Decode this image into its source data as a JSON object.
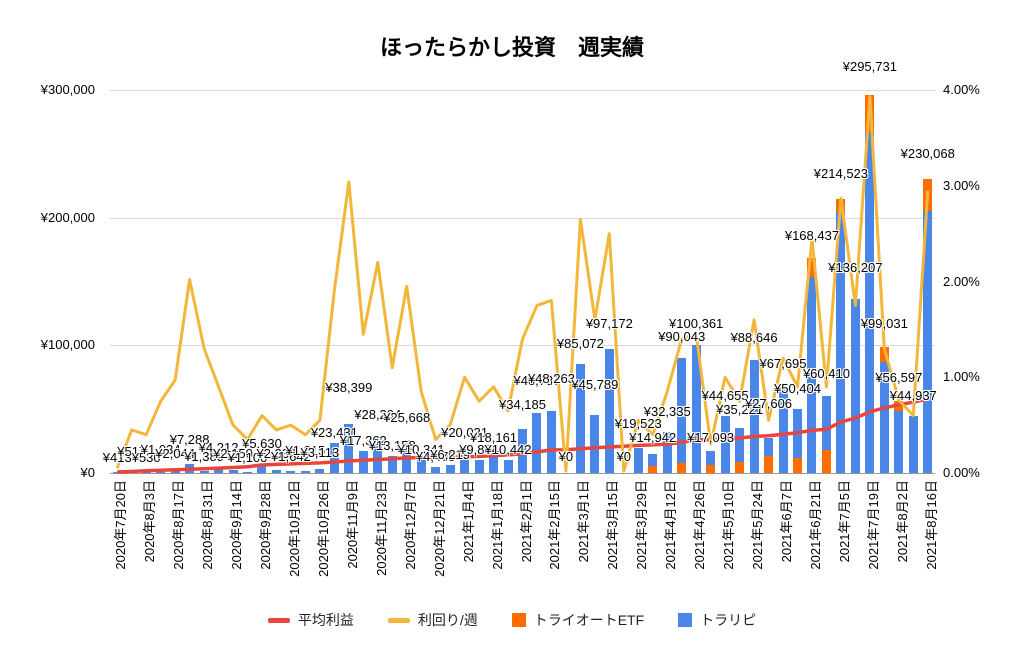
{
  "title": "ほったらかし投資　週実績",
  "legend": [
    {
      "label": "平均利益",
      "type": "line",
      "color": "#e8453c"
    },
    {
      "label": "利回り/週",
      "type": "line",
      "color": "#f2b73a"
    },
    {
      "label": "トライオートETF",
      "type": "square",
      "color": "#ff6d01"
    },
    {
      "label": "トラリピ",
      "type": "square",
      "color": "#4a86e8"
    }
  ],
  "chart_data": {
    "type": "bar",
    "subtype": "stacked-combo",
    "colors": {
      "traripi_bar": "#4a86e8",
      "etf_bar": "#ff6d01",
      "yield_line": "#f2b73a",
      "avg_line": "#e8453c",
      "grid": "#d9d9d9"
    },
    "left_axis": {
      "title": "",
      "min": 0,
      "max": 300000,
      "ticks": [
        "¥0",
        "¥100,000",
        "¥200,000",
        "¥300,000"
      ]
    },
    "right_axis": {
      "title": "",
      "min": 0,
      "max": 4,
      "ticks": [
        "0.00%",
        "1.00%",
        "2.00%",
        "3.00%",
        "4.00%"
      ]
    },
    "x_axis_labels": [
      "2020年7月20日",
      "2020年8月3日",
      "2020年8月17日",
      "2020年8月31日",
      "2020年9月14日",
      "2020年9月28日",
      "2020年10月12日",
      "2020年10月26日",
      "2020年11月9日",
      "2020年11月23日",
      "2020年12月7日",
      "2020年12月21日",
      "2021年1月4日",
      "2021年1月18日",
      "2021年2月1日",
      "2021年2月15日",
      "2021年3月1日",
      "2021年3月15日",
      "2021年3月29日",
      "2021年4月12日",
      "2021年4月26日",
      "2021年5月10日",
      "2021年5月24日",
      "2021年6月7日",
      "2021年6月21日",
      "2021年7月5日",
      "2021年7月19日",
      "2021年8月2日",
      "2021年8月16日"
    ],
    "series_names": {
      "bar_bottom": "トラリピ",
      "bar_overlay": "トライオートETF",
      "line_right_axis": "利回り/週",
      "line_left_axis": "平均利益"
    },
    "weeks": [
      {
        "label": "¥413",
        "total": 413,
        "etf": 0,
        "etf_pos": "top",
        "yield": 0.05,
        "avg": 800,
        "lift": 6
      },
      {
        "label": "¥517",
        "total": 517,
        "etf": 0,
        "etf_pos": "top",
        "yield": 0.45,
        "avg": 1200,
        "lift": 12
      },
      {
        "label": "¥530",
        "total": 530,
        "etf": 0,
        "etf_pos": "top",
        "yield": 0.4,
        "avg": 1700,
        "lift": 6
      },
      {
        "label": "¥1,034",
        "total": 1034,
        "etf": 0,
        "etf_pos": "top",
        "yield": 0.75,
        "avg": 2200,
        "lift": 14
      },
      {
        "label": "¥2,044",
        "total": 2044,
        "etf": 0,
        "etf_pos": "top",
        "yield": 0.97,
        "avg": 2600,
        "lift": 8
      },
      {
        "label": "¥7,288",
        "total": 7288,
        "etf": 0,
        "etf_pos": "top",
        "yield": 2.02,
        "avg": 2900,
        "lift": 16
      },
      {
        "label": "¥1,389",
        "total": 1389,
        "etf": 0,
        "etf_pos": "top",
        "yield": 1.3,
        "avg": 3300,
        "lift": 6
      },
      {
        "label": "¥4,212",
        "total": 4212,
        "etf": 0,
        "etf_pos": "top",
        "yield": 0.9,
        "avg": 3800,
        "lift": 12
      },
      {
        "label": "¥2,150",
        "total": 2150,
        "etf": 0,
        "etf_pos": "top",
        "yield": 0.5,
        "avg": 4300,
        "lift": 8
      },
      {
        "label": "¥1,100",
        "total": 1100,
        "etf": 0,
        "etf_pos": "top",
        "yield": 0.35,
        "avg": 4900,
        "lift": 6
      },
      {
        "label": "¥5,630",
        "total": 5630,
        "etf": 0,
        "etf_pos": "top",
        "yield": 0.6,
        "avg": 6300,
        "lift": 14
      },
      {
        "label": "¥2,333",
        "total": 2333,
        "etf": 0,
        "etf_pos": "top",
        "yield": 0.45,
        "avg": 6700,
        "lift": 8
      },
      {
        "label": "¥1,642",
        "total": 1642,
        "etf": 0,
        "etf_pos": "top",
        "yield": 0.5,
        "avg": 7100,
        "lift": 6
      },
      {
        "label": "¥1,215",
        "total": 1215,
        "etf": 0,
        "etf_pos": "top",
        "yield": 0.4,
        "avg": 7500,
        "lift": 12
      },
      {
        "label": "¥3,113",
        "total": 3113,
        "etf": 0,
        "etf_pos": "top",
        "yield": 0.55,
        "avg": 7900,
        "lift": 8
      },
      {
        "label": "¥23,431",
        "total": 23431,
        "etf": 0,
        "etf_pos": "top",
        "yield": 1.9,
        "avg": 8600,
        "lift": 2
      },
      {
        "label": "¥38,399",
        "total": 38399,
        "etf": 0,
        "etf_pos": "top",
        "yield": 3.04,
        "avg": 9400,
        "lift": 28
      },
      {
        "label": "¥17,362",
        "total": 17362,
        "etf": 0,
        "etf_pos": "top",
        "yield": 1.45,
        "avg": 10000,
        "lift": 2
      },
      {
        "label": "¥28,204",
        "total": 28204,
        "etf": 0,
        "etf_pos": "top",
        "yield": 2.2,
        "avg": 10600,
        "lift": 14
      },
      {
        "label": "¥13,158",
        "total": 13158,
        "etf": 0,
        "etf_pos": "top",
        "yield": 1.1,
        "avg": 11200,
        "lift": 2
      },
      {
        "label": "¥25,668",
        "total": 25668,
        "etf": 0,
        "etf_pos": "top",
        "yield": 1.95,
        "avg": 11800,
        "lift": 14
      },
      {
        "label": "¥10,341",
        "total": 10341,
        "etf": 0,
        "etf_pos": "top",
        "yield": 0.85,
        "avg": 12000,
        "lift": 2
      },
      {
        "label": "¥4,475",
        "total": 4475,
        "etf": 0,
        "etf_pos": "top",
        "yield": 0.35,
        "avg": 12200,
        "lift": 2
      },
      {
        "label": "¥6,219",
        "total": 6219,
        "etf": 0,
        "etf_pos": "top",
        "yield": 0.5,
        "avg": 12400,
        "lift": 2
      },
      {
        "label": "¥20,031",
        "total": 20031,
        "etf": 0,
        "etf_pos": "top",
        "yield": 1.0,
        "avg": 12700,
        "lift": 6
      },
      {
        "label": "¥9,804",
        "total": 9804,
        "etf": 0,
        "etf_pos": "top",
        "yield": 0.75,
        "avg": 13000,
        "lift": 2
      },
      {
        "label": "¥18,161",
        "total": 18161,
        "etf": 0,
        "etf_pos": "top",
        "yield": 0.9,
        "avg": 13600,
        "lift": 4
      },
      {
        "label": "¥10,442",
        "total": 10442,
        "etf": 0,
        "etf_pos": "top",
        "yield": 0.65,
        "avg": 14200,
        "lift": 2
      },
      {
        "label": "¥34,185",
        "total": 34185,
        "etf": 0,
        "etf_pos": "top",
        "yield": 1.4,
        "avg": 15000,
        "lift": 16
      },
      {
        "label": "¥46,737",
        "total": 46737,
        "etf": 0,
        "etf_pos": "top",
        "yield": 1.75,
        "avg": 16500,
        "lift": 24
      },
      {
        "label": "¥48,263",
        "total": 48263,
        "etf": 0,
        "etf_pos": "top",
        "yield": 1.8,
        "avg": 18000,
        "lift": 24
      },
      {
        "label": "¥0",
        "total": 0,
        "etf": 0,
        "etf_pos": "top",
        "yield": 0.02,
        "avg": 18200,
        "lift": 8
      },
      {
        "label": "¥85,072",
        "total": 85072,
        "etf": 0,
        "etf_pos": "top",
        "yield": 2.65,
        "avg": 19000,
        "lift": 12
      },
      {
        "label": "¥45,789",
        "total": 45789,
        "etf": 0,
        "etf_pos": "top",
        "yield": 1.6,
        "avg": 19800,
        "lift": 22
      },
      {
        "label": "¥97,172",
        "total": 97172,
        "etf": 0,
        "etf_pos": "top",
        "yield": 2.5,
        "avg": 20400,
        "lift": 17
      },
      {
        "label": "¥0",
        "total": 0,
        "etf": 0,
        "etf_pos": "top",
        "yield": 0.02,
        "avg": 21000,
        "lift": 8
      },
      {
        "label": "¥19,523",
        "total": 19523,
        "etf": 0,
        "etf_pos": "top",
        "yield": 0.55,
        "avg": 21600,
        "lift": 16
      },
      {
        "label": "¥14,942",
        "total": 14942,
        "etf": 5500,
        "etf_pos": "bottom",
        "yield": 0.4,
        "avg": 22000,
        "lift": 8
      },
      {
        "label": "¥32,335",
        "total": 32335,
        "etf": 0,
        "etf_pos": "top",
        "yield": 0.85,
        "avg": 22600,
        "lift": 12
      },
      {
        "label": "¥90,043",
        "total": 90043,
        "etf": 8000,
        "etf_pos": "bottom",
        "yield": 1.4,
        "avg": 24000,
        "lift": 13
      },
      {
        "label": "¥100,361",
        "total": 100361,
        "etf": 0,
        "etf_pos": "top",
        "yield": 1.45,
        "avg": 26000,
        "lift": 13
      },
      {
        "label": "¥17,093",
        "total": 17093,
        "etf": 6500,
        "etf_pos": "bottom",
        "yield": 0.3,
        "avg": 26200,
        "lift": 5
      },
      {
        "label": "¥44,655",
        "total": 44655,
        "etf": 0,
        "etf_pos": "top",
        "yield": 1.0,
        "avg": 26800,
        "lift": 12
      },
      {
        "label": "¥35,221",
        "total": 35221,
        "etf": 9000,
        "etf_pos": "bottom",
        "yield": 0.75,
        "avg": 27400,
        "lift": 10
      },
      {
        "label": "¥88,646",
        "total": 88646,
        "etf": 0,
        "etf_pos": "top",
        "yield": 1.6,
        "avg": 28600,
        "lift": 14
      },
      {
        "label": "¥27,606",
        "total": 27606,
        "etf": 13000,
        "etf_pos": "bottom",
        "yield": 0.55,
        "avg": 29200,
        "lift": 26
      },
      {
        "label": "¥67,695",
        "total": 67695,
        "etf": 0,
        "etf_pos": "top",
        "yield": 1.2,
        "avg": 30400,
        "lift": 15
      },
      {
        "label": "¥50,404",
        "total": 50404,
        "etf": 12000,
        "etf_pos": "bottom",
        "yield": 0.9,
        "avg": 31600,
        "lift": 12
      },
      {
        "label": "¥168,437",
        "total": 168437,
        "etf": 15000,
        "etf_pos": "top",
        "yield": 2.45,
        "avg": 33400,
        "lift": 14
      },
      {
        "label": "¥60,410",
        "total": 60410,
        "etf": 18000,
        "etf_pos": "bottom",
        "yield": 0.9,
        "avg": 34200,
        "lift": 14
      },
      {
        "label": "¥214,523",
        "total": 214523,
        "etf": 10000,
        "etf_pos": "top",
        "yield": 2.87,
        "avg": 40000,
        "lift": 17
      },
      {
        "label": "¥136,207",
        "total": 136207,
        "etf": 0,
        "etf_pos": "top",
        "yield": 1.75,
        "avg": 43000,
        "lift": 23
      },
      {
        "label": "¥295,731",
        "total": 295731,
        "etf": 29000,
        "etf_pos": "top",
        "yield": 3.93,
        "avg": 48000,
        "lift": 20
      },
      {
        "label": "¥99,031",
        "total": 99031,
        "etf": 12000,
        "etf_pos": "top",
        "yield": 1.3,
        "avg": 51000,
        "lift": 15
      },
      {
        "label": "¥56,597",
        "total": 56597,
        "etf": 8000,
        "etf_pos": "top",
        "yield": 0.76,
        "avg": 53500,
        "lift": 15
      },
      {
        "label": "¥44,937",
        "total": 44937,
        "etf": 0,
        "etf_pos": "top",
        "yield": 0.6,
        "avg": 55500,
        "lift": 12
      },
      {
        "label": "¥230,068",
        "total": 230068,
        "etf": 25000,
        "etf_pos": "top",
        "yield": 2.95,
        "avg": 58000,
        "lift": 17
      }
    ]
  }
}
